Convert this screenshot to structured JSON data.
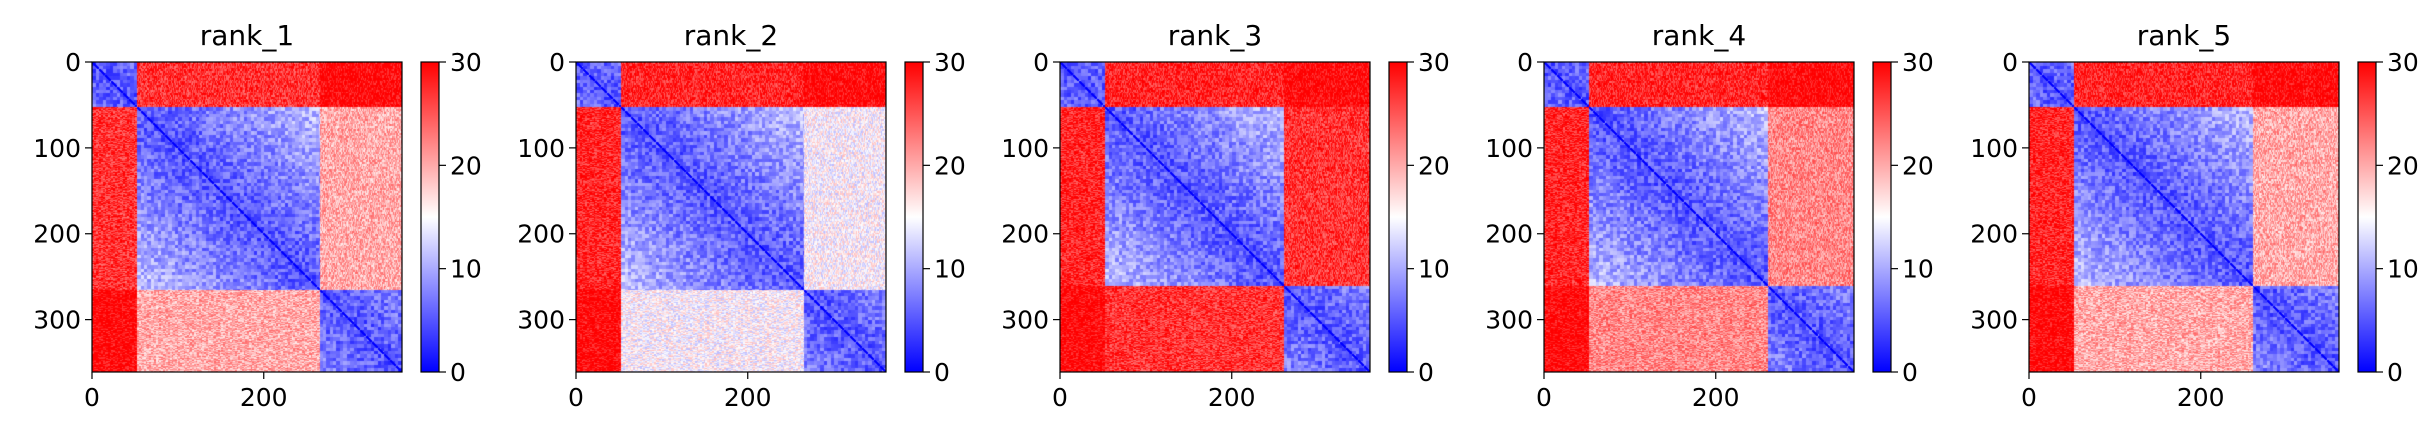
{
  "chart_data": [
    {
      "type": "heatmap",
      "title": "rank_1",
      "n": 361,
      "xlim": [
        0,
        361
      ],
      "ylim": [
        0,
        361
      ],
      "xticks": [
        0,
        200
      ],
      "yticks": [
        0,
        100,
        200,
        300
      ],
      "colorbar": {
        "range": [
          0,
          30
        ],
        "ticks": [
          0,
          10,
          20,
          30
        ],
        "colormap": "bwr"
      },
      "domains": [
        [
          0,
          52
        ],
        [
          52,
          265
        ],
        [
          265,
          361
        ]
      ],
      "inter_domain_level": [
        [
          0,
          27,
          30
        ],
        [
          27,
          0,
          20
        ],
        [
          30,
          20,
          0
        ]
      ],
      "intra_domain_level": [
        5,
        5,
        5
      ]
    },
    {
      "type": "heatmap",
      "title": "rank_2",
      "n": 361,
      "xlim": [
        0,
        361
      ],
      "ylim": [
        0,
        361
      ],
      "xticks": [
        0,
        200
      ],
      "yticks": [
        0,
        100,
        200,
        300
      ],
      "colorbar": {
        "range": [
          0,
          30
        ],
        "ticks": [
          0,
          10,
          20,
          30
        ],
        "colormap": "bwr"
      },
      "domains": [
        [
          0,
          52
        ],
        [
          52,
          265
        ],
        [
          265,
          361
        ]
      ],
      "inter_domain_level": [
        [
          0,
          28,
          30
        ],
        [
          28,
          0,
          15
        ],
        [
          30,
          15,
          0
        ]
      ],
      "intra_domain_level": [
        5,
        5,
        5
      ]
    },
    {
      "type": "heatmap",
      "title": "rank_3",
      "n": 361,
      "xlim": [
        0,
        361
      ],
      "ylim": [
        0,
        361
      ],
      "xticks": [
        0,
        200
      ],
      "yticks": [
        0,
        100,
        200,
        300
      ],
      "colorbar": {
        "range": [
          0,
          30
        ],
        "ticks": [
          0,
          10,
          20,
          30
        ],
        "colormap": "bwr"
      },
      "domains": [
        [
          0,
          52
        ],
        [
          52,
          260
        ],
        [
          260,
          361
        ]
      ],
      "inter_domain_level": [
        [
          0,
          28,
          30
        ],
        [
          28,
          0,
          27
        ],
        [
          30,
          27,
          0
        ]
      ],
      "intra_domain_level": [
        5,
        5,
        5
      ]
    },
    {
      "type": "heatmap",
      "title": "rank_4",
      "n": 361,
      "xlim": [
        0,
        361
      ],
      "ylim": [
        0,
        361
      ],
      "xticks": [
        0,
        200
      ],
      "yticks": [
        0,
        100,
        200,
        300
      ],
      "colorbar": {
        "range": [
          0,
          30
        ],
        "ticks": [
          0,
          10,
          20,
          30
        ],
        "colormap": "bwr"
      },
      "domains": [
        [
          0,
          52
        ],
        [
          52,
          260
        ],
        [
          260,
          361
        ]
      ],
      "inter_domain_level": [
        [
          0,
          28,
          30
        ],
        [
          28,
          0,
          22
        ],
        [
          30,
          22,
          0
        ]
      ],
      "intra_domain_level": [
        5,
        5,
        5
      ]
    },
    {
      "type": "heatmap",
      "title": "rank_5",
      "n": 361,
      "xlim": [
        0,
        361
      ],
      "ylim": [
        0,
        361
      ],
      "xticks": [
        0,
        200
      ],
      "yticks": [
        0,
        100,
        200,
        300
      ],
      "colorbar": {
        "range": [
          0,
          30
        ],
        "ticks": [
          0,
          10,
          20,
          30
        ],
        "colormap": "bwr"
      },
      "domains": [
        [
          0,
          52
        ],
        [
          52,
          260
        ],
        [
          260,
          361
        ]
      ],
      "inter_domain_level": [
        [
          0,
          28,
          30
        ],
        [
          28,
          0,
          20
        ],
        [
          30,
          20,
          0
        ]
      ],
      "intra_domain_level": [
        5,
        5,
        5
      ]
    }
  ],
  "colors": {
    "low": "#0000ff",
    "mid": "#ffffff",
    "high": "#ff0000"
  }
}
